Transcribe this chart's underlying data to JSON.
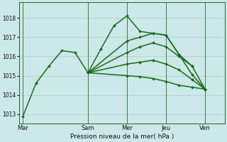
{
  "background_color": "#cce8e8",
  "grid_color": "#aacccc",
  "line_color": "#1a6b1a",
  "xlabel": "Pression niveau de la mer( hPa )",
  "ylim": [
    1012.5,
    1018.8
  ],
  "yticks": [
    1013,
    1014,
    1015,
    1016,
    1017,
    1018
  ],
  "x_day_labels": [
    "Mar",
    "Sam",
    "Mer",
    "Jeu",
    "Ven"
  ],
  "x_day_positions": [
    0,
    5,
    8,
    11,
    14
  ],
  "xlim": [
    -0.3,
    15.5
  ],
  "series": [
    {
      "x": [
        0,
        1,
        2,
        3,
        4,
        5,
        6,
        7,
        8,
        9,
        10,
        11,
        12,
        13
      ],
      "y": [
        1012.9,
        1014.6,
        1015.5,
        1016.3,
        1016.2,
        1015.15,
        1016.4,
        1017.6,
        1018.1,
        1017.3,
        1017.2,
        1017.1,
        1016.1,
        1015.5
      ],
      "linewidth": 1.1
    },
    {
      "x": [
        5,
        8,
        9,
        10,
        11,
        12,
        13,
        14
      ],
      "y": [
        1015.15,
        1016.8,
        1017.0,
        1017.2,
        1017.1,
        1016.1,
        1015.05,
        1014.3
      ],
      "linewidth": 1.1
    },
    {
      "x": [
        5,
        8,
        9,
        10,
        11,
        12,
        13,
        14
      ],
      "y": [
        1015.15,
        1016.2,
        1016.5,
        1016.7,
        1016.5,
        1016.0,
        1015.5,
        1014.3
      ],
      "linewidth": 1.1
    },
    {
      "x": [
        5,
        8,
        9,
        10,
        11,
        12,
        13,
        14
      ],
      "y": [
        1015.15,
        1015.6,
        1015.7,
        1015.8,
        1015.6,
        1015.3,
        1014.8,
        1014.3
      ],
      "linewidth": 1.1
    },
    {
      "x": [
        5,
        8,
        9,
        10,
        11,
        12,
        13,
        14
      ],
      "y": [
        1015.15,
        1015.0,
        1014.95,
        1014.85,
        1014.7,
        1014.5,
        1014.4,
        1014.3
      ],
      "linewidth": 1.1
    }
  ]
}
